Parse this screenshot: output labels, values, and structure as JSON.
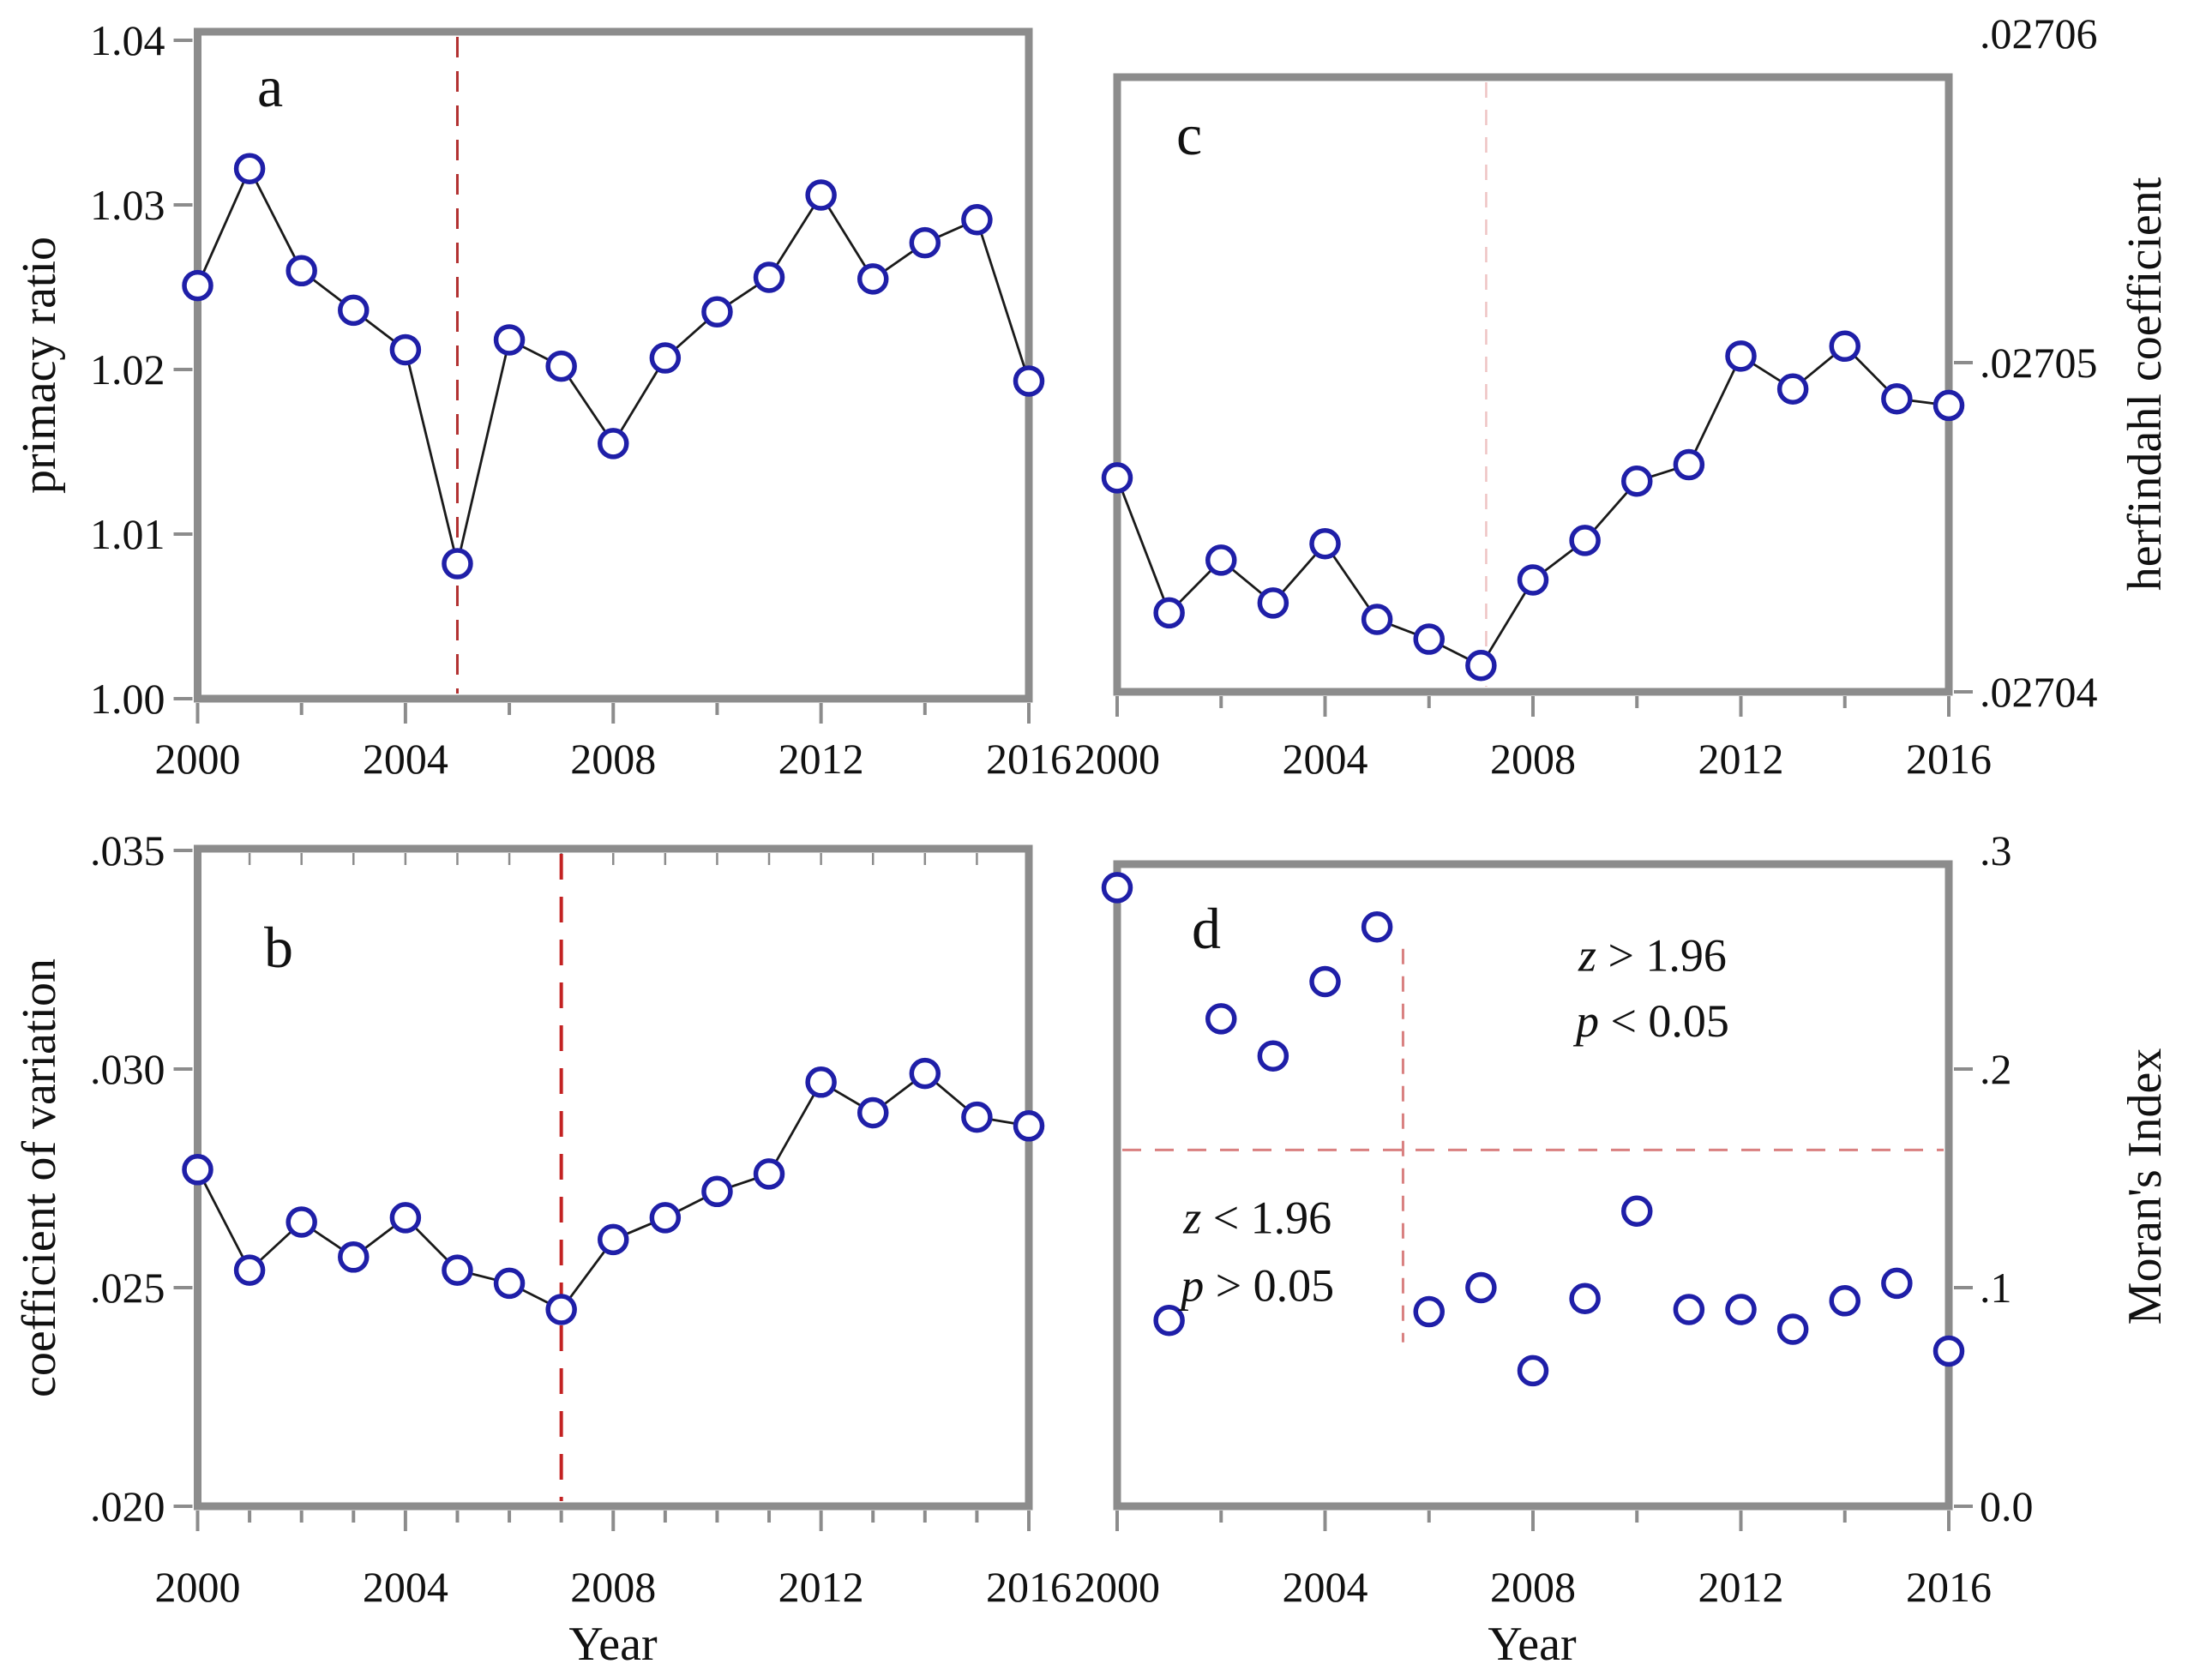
{
  "figure": {
    "background": "#ffffff",
    "border_color": "#8c8c8c",
    "tick_color": "#8c8c8c",
    "marker_color": "#1f1fa8",
    "line_color": "#1a1a1a",
    "text_color": "#111111",
    "xlabel": "Year",
    "x_tick_labels": [
      "2000",
      "2004",
      "2008",
      "2012",
      "2016"
    ]
  },
  "chart_data": [
    {
      "panel": "a",
      "type": "line",
      "title": "a",
      "ylabel": "primacy ratio",
      "ylabel_side": "left",
      "xlabel": "",
      "x": [
        2000,
        2001,
        2002,
        2003,
        2004,
        2005,
        2006,
        2007,
        2008,
        2009,
        2010,
        2011,
        2012,
        2013,
        2014,
        2015,
        2016
      ],
      "values": [
        1.0251,
        1.0322,
        1.026,
        1.0236,
        1.0212,
        1.0082,
        1.0218,
        1.0202,
        1.0155,
        1.0207,
        1.0235,
        1.0256,
        1.0306,
        1.0255,
        1.0277,
        1.0291,
        1.0193
      ],
      "ylim": [
        1.0,
        1.04
      ],
      "grid": false,
      "yticks": [
        {
          "v": 1.0,
          "label": "1.00"
        },
        {
          "v": 1.01,
          "label": "1.01"
        },
        {
          "v": 1.02,
          "label": "1.02"
        },
        {
          "v": 1.03,
          "label": "1.03"
        },
        {
          "v": 1.04,
          "label": "1.04"
        }
      ],
      "vlines": [
        {
          "x": 2005,
          "color": "#b23030",
          "dash": "24,16",
          "width": 3
        }
      ],
      "hlines": [],
      "annotations": []
    },
    {
      "panel": "b",
      "type": "line",
      "title": "b",
      "ylabel": "coefficient of variation",
      "ylabel_side": "left",
      "xlabel": "Year",
      "x": [
        2000,
        2001,
        2002,
        2003,
        2004,
        2005,
        2006,
        2007,
        2008,
        2009,
        2010,
        2011,
        2012,
        2013,
        2014,
        2015,
        2016
      ],
      "values": [
        0.0277,
        0.0254,
        0.0265,
        0.0257,
        0.0266,
        0.0254,
        0.0251,
        0.0245,
        0.0261,
        0.0266,
        0.0272,
        0.0276,
        0.0297,
        0.029,
        0.0299,
        0.0289,
        0.0287
      ],
      "ylim": [
        0.02,
        0.035
      ],
      "grid": false,
      "yticks": [
        {
          "v": 0.02,
          "label": ".020"
        },
        {
          "v": 0.025,
          "label": ".025"
        },
        {
          "v": 0.03,
          "label": ".030"
        },
        {
          "v": 0.035,
          "label": ".035"
        }
      ],
      "vlines": [
        {
          "x": 2007,
          "color": "#c32222",
          "dash": "30,20",
          "width": 4
        }
      ],
      "hlines": [],
      "annotations": []
    },
    {
      "panel": "c",
      "type": "line",
      "title": "c",
      "ylabel": "herfindahl coefficient",
      "ylabel_side": "right",
      "xlabel": "",
      "x": [
        2000,
        2001,
        2002,
        2003,
        2004,
        2005,
        2006,
        2007,
        2008,
        2009,
        2010,
        2011,
        2012,
        2013,
        2014,
        2015,
        2016
      ],
      "values": [
        0.0270465,
        0.0270424,
        0.027044,
        0.0270427,
        0.0270445,
        0.0270422,
        0.0270416,
        0.0270408,
        0.0270434,
        0.0270446,
        0.0270464,
        0.0270469,
        0.0270502,
        0.0270492,
        0.0270505,
        0.0270489,
        0.0270487
      ],
      "ylim": [
        0.02704,
        0.02706
      ],
      "grid": false,
      "yticks": [
        {
          "v": 0.02704,
          "label": ".02704"
        },
        {
          "v": 0.02705,
          "label": ".02705"
        },
        {
          "v": 0.02706,
          "label": ".02706"
        }
      ],
      "vlines": [
        {
          "x": 2007.1,
          "color": "#eec3c3",
          "dash": "18,14",
          "width": 2.5
        }
      ],
      "hlines": [],
      "annotations": []
    },
    {
      "panel": "d",
      "type": "scatter",
      "title": "d",
      "ylabel": "Moran's Index",
      "ylabel_side": "right",
      "xlabel": "Year",
      "x": [
        2000,
        2001,
        2002,
        2003,
        2004,
        2005,
        2006,
        2007,
        2008,
        2009,
        2010,
        2011,
        2012,
        2013,
        2014,
        2015,
        2016
      ],
      "values": [
        0.283,
        0.085,
        0.223,
        0.206,
        0.24,
        0.265,
        0.089,
        0.1,
        0.062,
        0.095,
        0.135,
        0.09,
        0.09,
        0.081,
        0.094,
        0.102,
        0.071
      ],
      "ylim": [
        0.0,
        0.3
      ],
      "grid": false,
      "yticks": [
        {
          "v": 0.0,
          "label": "0.0"
        },
        {
          "v": 0.1,
          "label": ".1"
        },
        {
          "v": 0.2,
          "label": ".2"
        },
        {
          "v": 0.3,
          "label": ".3"
        }
      ],
      "vlines": [
        {
          "x": 2005.5,
          "y1": 0.075,
          "y2": 0.255,
          "color": "#d98080",
          "dash": "18,14",
          "width": 3
        }
      ],
      "hlines": [
        {
          "y": 0.163,
          "color": "#d98080",
          "dash": "22,16",
          "width": 3
        }
      ],
      "annotations": [
        {
          "italic": "z",
          "text": " > 1.96",
          "x": 2010.3,
          "y": 0.245
        },
        {
          "italic": "p",
          "text": " < 0.05",
          "x": 2010.3,
          "y": 0.215
        },
        {
          "italic": "z",
          "text": " < 1.96",
          "x": 2002.7,
          "y": 0.125
        },
        {
          "italic": "p",
          "text": " > 0.05",
          "x": 2002.7,
          "y": 0.094
        }
      ]
    }
  ]
}
